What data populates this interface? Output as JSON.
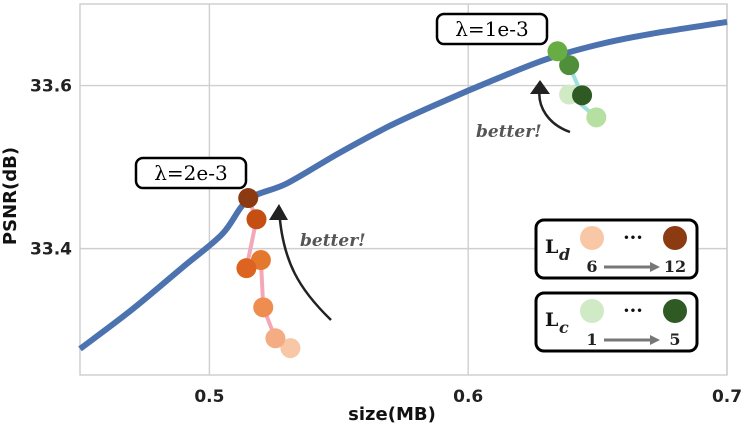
{
  "chart_data": {
    "type": "line",
    "xlabel": "size(MB)",
    "ylabel": "PSNR(dB)",
    "xlim": [
      0.45,
      0.7
    ],
    "ylim": [
      33.245,
      33.7
    ],
    "xticks": [
      0.5,
      0.6,
      0.7
    ],
    "xtick_labels": [
      "0.5",
      "0.6",
      "0.7"
    ],
    "yticks": [
      33.4,
      33.6
    ],
    "ytick_labels": [
      "33.4",
      "33.6"
    ],
    "grid": true,
    "curve": {
      "color": "#4c72b0",
      "x": [
        0.45,
        0.47,
        0.49,
        0.505,
        0.515,
        0.53,
        0.55,
        0.57,
        0.59,
        0.61,
        0.63,
        0.65,
        0.67,
        0.7
      ],
      "y": [
        33.277,
        33.325,
        33.378,
        33.418,
        33.46,
        33.48,
        33.517,
        33.551,
        33.58,
        33.607,
        33.632,
        33.65,
        33.663,
        33.678
      ]
    },
    "groups": [
      {
        "lambda": "λ=2e-3",
        "path_color": "#f4a7b9",
        "arrow_label": "better!",
        "points": [
          {
            "x": 0.5313,
            "y": 33.278,
            "color": "#f8c7a5"
          },
          {
            "x": 0.5255,
            "y": 33.29,
            "color": "#f4ac83"
          },
          {
            "x": 0.5208,
            "y": 33.328,
            "color": "#ee8d4f"
          },
          {
            "x": 0.5199,
            "y": 33.386,
            "color": "#e5782f"
          },
          {
            "x": 0.5143,
            "y": 33.376,
            "color": "#dd6420"
          },
          {
            "x": 0.5182,
            "y": 33.436,
            "color": "#c54f12"
          },
          {
            "x": 0.515,
            "y": 33.462,
            "color": "#8b3a12"
          }
        ]
      },
      {
        "lambda": "λ=1e-3",
        "path_color": "#9ee0dd",
        "arrow_label": "better!",
        "points": [
          {
            "x": 0.6495,
            "y": 33.561,
            "color": "#b5e0a2"
          },
          {
            "x": 0.639,
            "y": 33.589,
            "color": "#cfeac4"
          },
          {
            "x": 0.644,
            "y": 33.588,
            "color": "#2f5a23"
          },
          {
            "x": 0.639,
            "y": 33.625,
            "color": "#4f8f3a"
          },
          {
            "x": 0.6345,
            "y": 33.642,
            "color": "#68ad44"
          }
        ]
      }
    ],
    "legend": [
      {
        "symbol": "L",
        "subscript": "d",
        "from": "6",
        "to": "12",
        "color_from": "#f8c7a5",
        "color_to": "#8b3a12",
        "dots": "···"
      },
      {
        "symbol": "L",
        "subscript": "c",
        "from": "1",
        "to": "5",
        "color_from": "#cfeac4",
        "color_to": "#2f5a23",
        "dots": "···"
      }
    ]
  }
}
